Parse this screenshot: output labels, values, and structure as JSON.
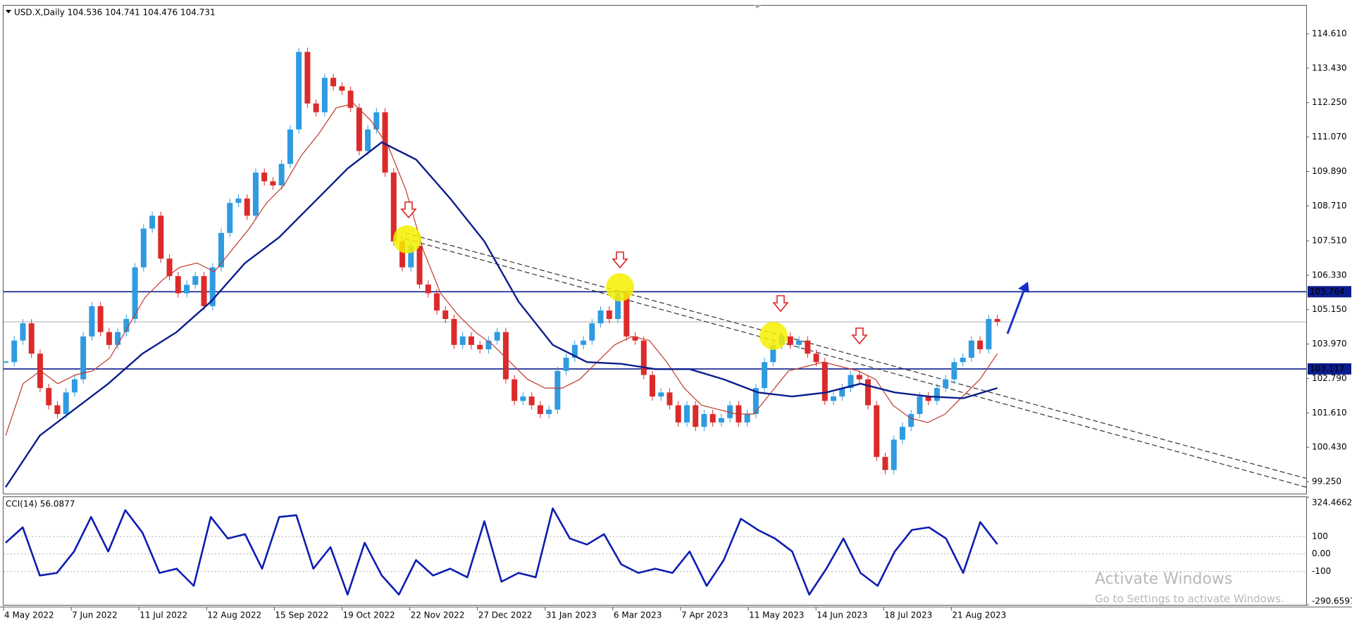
{
  "chart_data": [
    {
      "type": "candlestick",
      "title": "USD.X,Daily  104.536 104.741 104.476 104.731",
      "values": [
        103.35,
        104.09,
        104.68,
        103.64,
        102.46,
        101.87,
        101.57,
        102.31,
        102.76,
        104.23,
        105.27,
        104.38,
        103.94,
        104.38,
        104.83,
        106.6,
        107.93,
        108.37,
        106.9,
        106.3,
        105.71,
        106.0,
        106.3,
        105.27,
        106.6,
        107.78,
        108.81,
        108.96,
        108.37,
        109.85,
        109.55,
        109.41,
        110.15,
        111.33,
        113.99,
        112.22,
        111.92,
        113.1,
        112.81,
        112.66,
        112.07,
        110.59,
        111.33,
        111.92,
        109.85,
        107.49,
        106.6,
        107.34,
        106.01,
        105.71,
        105.12,
        104.83,
        103.94,
        104.23,
        103.94,
        103.79,
        104.09,
        104.38,
        102.76,
        102.02,
        102.17,
        101.87,
        101.57,
        101.72,
        103.05,
        103.5,
        103.94,
        104.09,
        104.68,
        105.12,
        104.83,
        105.71,
        104.23,
        104.09,
        102.91,
        102.17,
        102.31,
        101.87,
        101.28,
        101.87,
        101.13,
        101.57,
        101.28,
        101.43,
        101.87,
        101.28,
        101.57,
        102.46,
        103.35,
        103.94,
        104.23,
        103.94,
        104.09,
        103.64,
        103.35,
        102.02,
        102.17,
        102.46,
        102.91,
        102.76,
        101.87,
        100.1,
        99.65,
        100.69,
        101.13,
        101.57,
        102.17,
        102.02,
        102.46,
        102.76,
        103.35,
        103.5,
        104.09,
        103.79,
        104.83,
        104.731
      ],
      "up_color": "#2f9be0",
      "down_color": "#dc2a2a",
      "ylim": [
        98.84,
        115.6
      ],
      "yticks": [
        {
          "value": 114.61,
          "label": "114.610"
        },
        {
          "value": 113.43,
          "label": "113.430"
        },
        {
          "value": 112.25,
          "label": "112.250"
        },
        {
          "value": 111.07,
          "label": "111.070"
        },
        {
          "value": 109.89,
          "label": "109.890"
        },
        {
          "value": 108.71,
          "label": "108.710"
        },
        {
          "value": 107.51,
          "label": "107.510"
        },
        {
          "value": 106.33,
          "label": "106.330"
        },
        {
          "value": 105.15,
          "label": "105.150"
        },
        {
          "value": 103.97,
          "label": "103.970"
        },
        {
          "value": 102.79,
          "label": "102.790"
        },
        {
          "value": 101.61,
          "label": "101.610"
        },
        {
          "value": 100.43,
          "label": "100.430"
        },
        {
          "value": 99.25,
          "label": "99.250"
        }
      ],
      "moving_averages": [
        {
          "color": "#c0392b",
          "values": [
            100.83,
            102.61,
            103.05,
            102.61,
            102.91,
            103.05,
            103.5,
            104.53,
            105.56,
            106.16,
            106.6,
            106.75,
            106.45,
            107.19,
            107.93,
            108.81,
            109.41,
            110.44,
            111.18,
            112.07,
            112.22,
            111.63,
            110.74,
            109.26,
            107.19,
            105.71,
            104.97,
            104.38,
            103.94,
            103.35,
            102.76,
            102.46,
            102.46,
            102.76,
            103.35,
            103.94,
            104.23,
            104.09,
            103.35,
            102.46,
            101.87,
            101.72,
            101.57,
            101.57,
            102.31,
            103.05,
            103.2,
            103.35,
            103.2,
            103.05,
            102.76,
            101.87,
            101.43,
            101.28,
            101.57,
            102.17,
            102.76,
            103.64
          ]
        },
        {
          "color": "#0b1d8c",
          "values": [
            99.06,
            100.83,
            101.72,
            102.61,
            103.64,
            104.38,
            105.42,
            106.75,
            107.63,
            108.81,
            109.99,
            110.89,
            110.3,
            108.96,
            107.49,
            105.42,
            103.94,
            103.35,
            103.29,
            103.11,
            103.11,
            102.76,
            102.31,
            102.17,
            102.31,
            102.61,
            102.31,
            102.17,
            102.11,
            102.46
          ]
        }
      ],
      "levels": [
        {
          "value": 105.764,
          "color": "#0b1d8c"
        },
        {
          "value": 103.117,
          "color": "#0b1d8c"
        }
      ],
      "price_line": {
        "value": 104.731,
        "color": "#000000"
      },
      "trendlines": [
        {
          "start": 107.78,
          "end": 99.36
        },
        {
          "start": 107.58,
          "end": 99.06
        }
      ],
      "xtick_labels": [
        "4 May 2022",
        "7 Jun 2022",
        "11 Jul 2022",
        "12 Aug 2022",
        "15 Sep 2022",
        "19 Oct 2022",
        "22 Nov 2022",
        "27 Dec 2022",
        "31 Jan 2023",
        "6 Mar 2023",
        "7 Apr 2023",
        "11 May 2023",
        "14 Jun 2023",
        "18 Jul 2023",
        "21 Aug 2023"
      ]
    },
    {
      "type": "line",
      "title": "CCI(14) 56.0877",
      "color": "#0b1db0",
      "values": [
        64,
        152,
        -123,
        -108,
        14,
        211,
        14,
        250,
        122,
        -108,
        -84,
        -182,
        211,
        88,
        113,
        -84,
        211,
        221,
        -84,
        39,
        -232,
        64,
        -123,
        -232,
        -35,
        -123,
        -84,
        -133,
        187,
        -158,
        -108,
        -133,
        260,
        88,
        54,
        113,
        -59,
        -108,
        -84,
        -108,
        14,
        -182,
        -35,
        201,
        137,
        88,
        14,
        -232,
        -84,
        88,
        -108,
        -182,
        14,
        137,
        152,
        88,
        -108,
        182,
        56.0877
      ],
      "ylim": [
        -290.6597,
        324.4662
      ],
      "yticks": [
        324.4662,
        100,
        {
          "value": 0,
          "label": "0.00"
        },
        -100,
        -290.6597
      ]
    }
  ],
  "watermark": {
    "title": "Activate Windows",
    "text": "Go to Settings to activate Windows."
  }
}
